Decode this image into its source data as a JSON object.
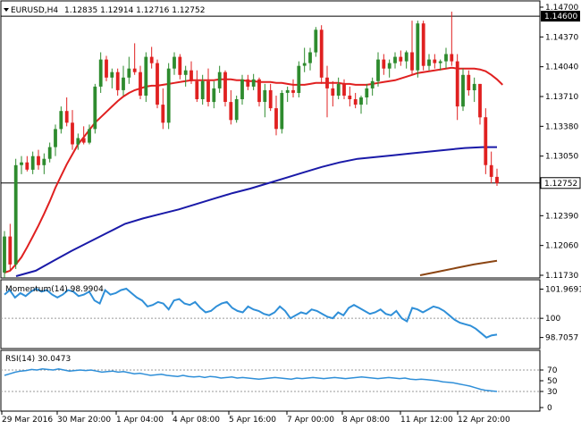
{
  "chart_data": [
    {
      "type": "candlestick",
      "title": "EURUSD,H4",
      "ohlc_text": "1.12835 1.12914 1.12716 1.12752",
      "ylim": [
        1.1173,
        1.147
      ],
      "y_ticks": [
        "1.14700",
        "1.14370",
        "1.14040",
        "1.13710",
        "1.13380",
        "1.13050",
        "1.12390",
        "1.12060",
        "1.11730"
      ],
      "highlight_labels": [
        {
          "price": 1.146,
          "text": "1.14600",
          "style": "black"
        },
        {
          "price": 1.12752,
          "text": "1.12752",
          "style": "white-box"
        }
      ],
      "horizontal_lines": [
        1.146,
        1.12752
      ],
      "x_labels": [
        "29 Mar 2016",
        "30 Mar 20:00",
        "1 Apr 04:00",
        "4 Apr 08:00",
        "5 Apr 16:00",
        "7 Apr 00:00",
        "8 Apr 08:00",
        "11 Apr 12:00",
        "12 Apr 20:00"
      ],
      "colors": {
        "bull": "#2e8b2e",
        "bear": "#e02020",
        "sma20": "#e02020",
        "sma100": "#1a1aa8",
        "sma200": "#8b4513"
      },
      "candles": [
        [
          1.1176,
          1.1222,
          1.117,
          1.1216
        ],
        [
          1.1216,
          1.123,
          1.1178,
          1.1185
        ],
        [
          1.1185,
          1.1302,
          1.118,
          1.1295
        ],
        [
          1.1295,
          1.1305,
          1.1285,
          1.1298
        ],
        [
          1.1298,
          1.1305,
          1.1288,
          1.129
        ],
        [
          1.129,
          1.131,
          1.1285,
          1.1305
        ],
        [
          1.1305,
          1.1312,
          1.129,
          1.1295
        ],
        [
          1.1295,
          1.1308,
          1.1285,
          1.1302
        ],
        [
          1.1302,
          1.132,
          1.1298,
          1.1315
        ],
        [
          1.1315,
          1.134,
          1.1305,
          1.1335
        ],
        [
          1.1335,
          1.136,
          1.133,
          1.1355
        ],
        [
          1.1355,
          1.137,
          1.1338,
          1.1342
        ],
        [
          1.1342,
          1.1356,
          1.1312,
          1.1318
        ],
        [
          1.1318,
          1.133,
          1.1312,
          1.1325
        ],
        [
          1.1325,
          1.1338,
          1.1318,
          1.132
        ],
        [
          1.132,
          1.134,
          1.1318,
          1.1335
        ],
        [
          1.1335,
          1.1385,
          1.133,
          1.1382
        ],
        [
          1.1382,
          1.142,
          1.1375,
          1.1412
        ],
        [
          1.1412,
          1.1416,
          1.1388,
          1.1392
        ],
        [
          1.1392,
          1.1402,
          1.138,
          1.1398
        ],
        [
          1.1398,
          1.1402,
          1.1372,
          1.1378
        ],
        [
          1.1378,
          1.1405,
          1.1372,
          1.1392
        ],
        [
          1.1392,
          1.1415,
          1.1385,
          1.1402
        ],
        [
          1.1402,
          1.143,
          1.1395,
          1.1398
        ],
        [
          1.1398,
          1.1405,
          1.1368,
          1.1372
        ],
        [
          1.1372,
          1.142,
          1.1365,
          1.1415
        ],
        [
          1.1415,
          1.1426,
          1.1402,
          1.1408
        ],
        [
          1.1408,
          1.1412,
          1.1358,
          1.1362
        ],
        [
          1.1362,
          1.138,
          1.1335,
          1.1342
        ],
        [
          1.1342,
          1.1408,
          1.1335,
          1.1402
        ],
        [
          1.1402,
          1.142,
          1.1395,
          1.1415
        ],
        [
          1.1415,
          1.1418,
          1.139,
          1.1395
        ],
        [
          1.1395,
          1.1405,
          1.1382,
          1.14
        ],
        [
          1.14,
          1.141,
          1.1385,
          1.1388
        ],
        [
          1.1388,
          1.14,
          1.1365,
          1.1368
        ],
        [
          1.1368,
          1.1395,
          1.1362,
          1.1388
        ],
        [
          1.1388,
          1.1402,
          1.136,
          1.1365
        ],
        [
          1.1365,
          1.1388,
          1.1358,
          1.138
        ],
        [
          1.138,
          1.1405,
          1.1375,
          1.1398
        ],
        [
          1.1398,
          1.14,
          1.136,
          1.1365
        ],
        [
          1.1365,
          1.1378,
          1.134,
          1.1345
        ],
        [
          1.1345,
          1.1372,
          1.1342,
          1.1368
        ],
        [
          1.1368,
          1.1395,
          1.1362,
          1.139
        ],
        [
          1.139,
          1.1395,
          1.1378,
          1.1382
        ],
        [
          1.1382,
          1.1396,
          1.1378,
          1.139
        ],
        [
          1.139,
          1.1392,
          1.136,
          1.1365
        ],
        [
          1.1365,
          1.1385,
          1.1348,
          1.1378
        ],
        [
          1.1378,
          1.1385,
          1.1355,
          1.1358
        ],
        [
          1.1358,
          1.1372,
          1.1328,
          1.1335
        ],
        [
          1.1335,
          1.1378,
          1.133,
          1.1375
        ],
        [
          1.1375,
          1.1382,
          1.1365,
          1.1378
        ],
        [
          1.1378,
          1.139,
          1.137,
          1.1375
        ],
        [
          1.1375,
          1.141,
          1.137,
          1.1405
        ],
        [
          1.1405,
          1.1425,
          1.1398,
          1.1408
        ],
        [
          1.1408,
          1.1425,
          1.14,
          1.142
        ],
        [
          1.142,
          1.1448,
          1.1415,
          1.1445
        ],
        [
          1.1445,
          1.145,
          1.1385,
          1.1392
        ],
        [
          1.1392,
          1.1405,
          1.1348,
          1.138
        ],
        [
          1.138,
          1.1388,
          1.136,
          1.1372
        ],
        [
          1.1372,
          1.1392,
          1.1368,
          1.1385
        ],
        [
          1.1385,
          1.139,
          1.1368,
          1.1372
        ],
        [
          1.1372,
          1.1382,
          1.136,
          1.1368
        ],
        [
          1.1368,
          1.1375,
          1.1358,
          1.1362
        ],
        [
          1.1362,
          1.1372,
          1.1352,
          1.137
        ],
        [
          1.137,
          1.1385,
          1.1362,
          1.138
        ],
        [
          1.138,
          1.1392,
          1.1372,
          1.1388
        ],
        [
          1.1388,
          1.142,
          1.1382,
          1.1412
        ],
        [
          1.1412,
          1.1418,
          1.1395,
          1.1402
        ],
        [
          1.1402,
          1.1412,
          1.1392,
          1.1408
        ],
        [
          1.1408,
          1.142,
          1.1402,
          1.1415
        ],
        [
          1.1415,
          1.1422,
          1.1405,
          1.141
        ],
        [
          1.141,
          1.1422,
          1.1402,
          1.142
        ],
        [
          1.142,
          1.1455,
          1.1395,
          1.14
        ],
        [
          1.14,
          1.1455,
          1.1392,
          1.1452
        ],
        [
          1.1452,
          1.1455,
          1.14,
          1.1405
        ],
        [
          1.1405,
          1.1418,
          1.14,
          1.1412
        ],
        [
          1.1412,
          1.1418,
          1.1402,
          1.1408
        ],
        [
          1.1408,
          1.1412,
          1.14,
          1.141
        ],
        [
          1.141,
          1.1425,
          1.1402,
          1.1418
        ],
        [
          1.1418,
          1.1465,
          1.1405,
          1.141
        ],
        [
          1.141,
          1.1418,
          1.1345,
          1.136
        ],
        [
          1.136,
          1.1402,
          1.1355,
          1.1395
        ],
        [
          1.1395,
          1.14,
          1.1372,
          1.1378
        ],
        [
          1.1378,
          1.1392,
          1.1365,
          1.1385
        ],
        [
          1.1385,
          1.1385,
          1.134,
          1.1348
        ],
        [
          1.1348,
          1.1358,
          1.1285,
          1.1295
        ],
        [
          1.1295,
          1.131,
          1.1275,
          1.1282
        ],
        [
          1.1282,
          1.1291,
          1.1272,
          1.1275
        ]
      ],
      "sma20": [
        1.1176,
        1.1178,
        1.1185,
        1.1193,
        1.1204,
        1.1216,
        1.1228,
        1.1241,
        1.1255,
        1.127,
        1.1283,
        1.1296,
        1.1307,
        1.1318,
        1.1326,
        1.1334,
        1.1342,
        1.1348,
        1.1354,
        1.136,
        1.1366,
        1.1371,
        1.1375,
        1.1378,
        1.138,
        1.1382,
        1.1383,
        1.1383,
        1.1384,
        1.1385,
        1.1386,
        1.1387,
        1.1388,
        1.1389,
        1.1389,
        1.1389,
        1.1389,
        1.1389,
        1.139,
        1.139,
        1.139,
        1.1389,
        1.1389,
        1.1388,
        1.1388,
        1.1387,
        1.1387,
        1.1387,
        1.1386,
        1.1386,
        1.1385,
        1.1384,
        1.1384,
        1.1384,
        1.1385,
        1.1386,
        1.1386,
        1.1386,
        1.1386,
        1.1386,
        1.1385,
        1.1385,
        1.1384,
        1.1384,
        1.1384,
        1.1385,
        1.1386,
        1.1387,
        1.1388,
        1.1389,
        1.1391,
        1.1393,
        1.1395,
        1.1397,
        1.1398,
        1.1399,
        1.14,
        1.1401,
        1.1402,
        1.1403,
        1.1402,
        1.1402,
        1.1402,
        1.1402,
        1.1401,
        1.1399,
        1.1395,
        1.139,
        1.1384
      ],
      "sma100_pts": [
        [
          18,
          1.1172
        ],
        [
          40,
          1.1178
        ],
        [
          60,
          1.1189
        ],
        [
          80,
          1.12
        ],
        [
          100,
          1.121
        ],
        [
          120,
          1.122
        ],
        [
          140,
          1.123
        ],
        [
          160,
          1.1236
        ],
        [
          180,
          1.1241
        ],
        [
          200,
          1.1246
        ],
        [
          220,
          1.1252
        ],
        [
          240,
          1.1258
        ],
        [
          260,
          1.1264
        ],
        [
          280,
          1.1269
        ],
        [
          300,
          1.1275
        ],
        [
          320,
          1.1281
        ],
        [
          340,
          1.1287
        ],
        [
          360,
          1.1293
        ],
        [
          380,
          1.1298
        ],
        [
          400,
          1.1302
        ],
        [
          420,
          1.1304
        ],
        [
          440,
          1.1306
        ],
        [
          460,
          1.1308
        ],
        [
          480,
          1.131
        ],
        [
          500,
          1.1312
        ],
        [
          520,
          1.1314
        ],
        [
          540,
          1.1315
        ],
        [
          556,
          1.1315
        ]
      ],
      "sma200_pts": [
        [
          470,
          1.1173
        ],
        [
          490,
          1.1177
        ],
        [
          510,
          1.1181
        ],
        [
          530,
          1.1185
        ],
        [
          556,
          1.1189
        ]
      ]
    },
    {
      "type": "line",
      "title": "Momentum(14) 98.9904",
      "ylim": [
        98.2,
        102.3
      ],
      "y_ticks": [
        "101.9691",
        "100",
        "98.7057"
      ],
      "dashed_levels": [
        100
      ],
      "values": [
        101.6,
        101.9,
        101.4,
        101.7,
        101.5,
        101.8,
        102.0,
        101.8,
        101.9,
        101.6,
        101.4,
        101.6,
        101.9,
        101.8,
        101.5,
        101.6,
        101.8,
        101.2,
        101.0,
        101.9,
        101.6,
        101.7,
        101.9,
        102.0,
        101.7,
        101.4,
        101.2,
        100.8,
        100.9,
        101.1,
        101.0,
        100.6,
        101.2,
        101.3,
        101.0,
        100.9,
        101.1,
        100.7,
        100.4,
        100.5,
        100.8,
        101.0,
        101.1,
        100.7,
        100.5,
        100.4,
        100.8,
        100.6,
        100.5,
        100.3,
        100.2,
        100.4,
        100.8,
        100.5,
        100.0,
        100.2,
        100.4,
        100.3,
        100.6,
        100.5,
        100.3,
        100.1,
        100.0,
        100.4,
        100.2,
        100.7,
        100.9,
        100.7,
        100.5,
        100.3,
        100.4,
        100.6,
        100.3,
        100.2,
        100.5,
        100.0,
        99.8,
        100.7,
        100.6,
        100.4,
        100.6,
        100.8,
        100.7,
        100.5,
        100.2,
        99.9,
        99.7,
        99.6,
        99.5,
        99.3,
        99.0,
        98.7,
        98.85,
        98.9
      ]
    },
    {
      "type": "line",
      "title": "RSI(14) 30.0473",
      "ylim": [
        0,
        100
      ],
      "y_ticks": [
        "70",
        "50",
        "30",
        "0"
      ],
      "dashed_levels": [
        70,
        30
      ],
      "values": [
        60,
        63,
        66,
        68,
        69,
        71,
        70,
        72,
        71,
        70,
        72,
        70,
        68,
        69,
        70,
        69,
        70,
        68,
        66,
        67,
        68,
        66,
        67,
        65,
        63,
        64,
        62,
        60,
        61,
        62,
        60,
        59,
        58,
        60,
        58,
        57,
        58,
        56,
        58,
        57,
        55,
        56,
        57,
        55,
        56,
        55,
        54,
        53,
        54,
        55,
        56,
        55,
        54,
        53,
        55,
        54,
        55,
        56,
        55,
        54,
        55,
        56,
        55,
        54,
        55,
        56,
        57,
        56,
        55,
        54,
        55,
        56,
        55,
        54,
        55,
        53,
        52,
        53,
        52,
        51,
        50,
        48,
        47,
        46,
        44,
        42,
        40,
        37,
        34,
        32,
        31,
        30
      ]
    }
  ]
}
